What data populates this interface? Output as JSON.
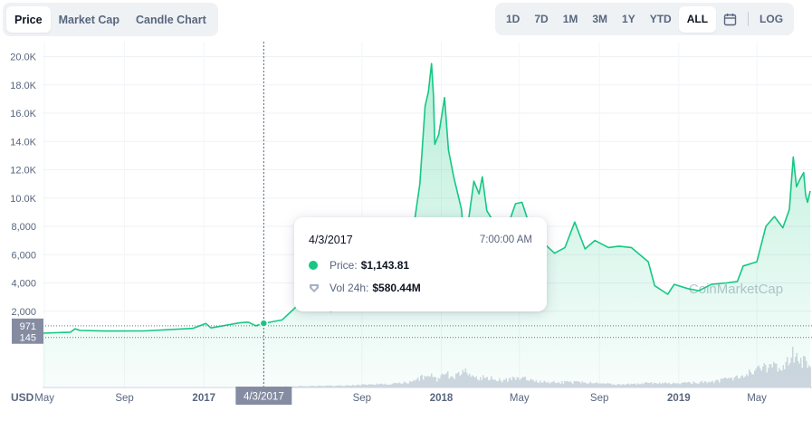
{
  "tabs": [
    {
      "label": "Price",
      "active": true
    },
    {
      "label": "Market Cap",
      "active": false
    },
    {
      "label": "Candle Chart",
      "active": false
    }
  ],
  "ranges": [
    {
      "label": "1D",
      "active": false
    },
    {
      "label": "7D",
      "active": false
    },
    {
      "label": "1M",
      "active": false
    },
    {
      "label": "3M",
      "active": false
    },
    {
      "label": "1Y",
      "active": false
    },
    {
      "label": "YTD",
      "active": false
    },
    {
      "label": "ALL",
      "active": true
    }
  ],
  "log_label": "LOG",
  "currency": "USD",
  "tooltip": {
    "date": "4/3/2017",
    "time": "7:00:00 AM",
    "price_label": "Price:",
    "price_value": "$1,143.81",
    "volume_label": "Vol 24h:",
    "volume_value": "$580.44M"
  },
  "crosshair_label": "4/3/2017",
  "watermark": "CoinMarketCap",
  "colors": {
    "accent": "#16c784",
    "text": "#58667e",
    "dark": "#0d1421",
    "axis_badge": "#858ca2"
  },
  "chart_data": {
    "type": "area",
    "y_ticks": [
      "20.0K",
      "18.0K",
      "16.0K",
      "14.0K",
      "12.0K",
      "10.0K",
      "8,000",
      "6,000",
      "4,000",
      "2,000"
    ],
    "y_markers": [
      "971",
      "145"
    ],
    "x_ticks": [
      "May",
      "Sep",
      "2017",
      "4/3/2017",
      "Sep",
      "2018",
      "May",
      "Sep",
      "2019",
      "May"
    ],
    "ylim": [
      0,
      20600
    ],
    "series": [
      {
        "values": [
          [
            "2016-04-28",
            450
          ],
          [
            "2016-06-10",
            520
          ],
          [
            "2016-06-17",
            760
          ],
          [
            "2016-06-25",
            640
          ],
          [
            "2016-08-01",
            600
          ],
          [
            "2016-10-01",
            610
          ],
          [
            "2016-12-15",
            790
          ],
          [
            "2017-01-04",
            1130
          ],
          [
            "2017-01-12",
            820
          ],
          [
            "2017-02-25",
            1180
          ],
          [
            "2017-03-10",
            1230
          ],
          [
            "2017-03-22",
            970
          ],
          [
            "2017-04-03",
            1144
          ],
          [
            "2017-05-01",
            1380
          ],
          [
            "2017-05-25",
            2400
          ],
          [
            "2017-06-12",
            2900
          ],
          [
            "2017-07-15",
            2000
          ],
          [
            "2017-08-10",
            3400
          ],
          [
            "2017-09-01",
            4700
          ],
          [
            "2017-09-15",
            3300
          ],
          [
            "2017-10-01",
            4300
          ],
          [
            "2017-10-20",
            6000
          ],
          [
            "2017-11-08",
            7400
          ],
          [
            "2017-11-20",
            8100
          ],
          [
            "2017-11-29",
            11000
          ],
          [
            "2017-12-07",
            16500
          ],
          [
            "2017-12-12",
            17500
          ],
          [
            "2017-12-17",
            19500
          ],
          [
            "2017-12-20",
            17200
          ],
          [
            "2017-12-22",
            13800
          ],
          [
            "2017-12-28",
            14500
          ],
          [
            "2018-01-06",
            17100
          ],
          [
            "2018-01-12",
            13400
          ],
          [
            "2018-01-20",
            11500
          ],
          [
            "2018-02-01",
            9200
          ],
          [
            "2018-02-05",
            6900
          ],
          [
            "2018-02-12",
            8500
          ],
          [
            "2018-02-20",
            11200
          ],
          [
            "2018-02-28",
            10300
          ],
          [
            "2018-03-05",
            11500
          ],
          [
            "2018-03-12",
            9100
          ],
          [
            "2018-03-20",
            8500
          ],
          [
            "2018-04-01",
            6900
          ],
          [
            "2018-04-12",
            7900
          ],
          [
            "2018-04-25",
            9600
          ],
          [
            "2018-05-05",
            9700
          ],
          [
            "2018-05-15",
            8300
          ],
          [
            "2018-05-25",
            7400
          ],
          [
            "2018-06-10",
            6700
          ],
          [
            "2018-06-24",
            6100
          ],
          [
            "2018-07-10",
            6500
          ],
          [
            "2018-07-25",
            8300
          ],
          [
            "2018-08-10",
            6400
          ],
          [
            "2018-08-25",
            7000
          ],
          [
            "2018-09-15",
            6500
          ],
          [
            "2018-10-01",
            6600
          ],
          [
            "2018-10-20",
            6500
          ],
          [
            "2018-11-15",
            5500
          ],
          [
            "2018-11-25",
            3800
          ],
          [
            "2018-12-15",
            3200
          ],
          [
            "2018-12-25",
            3900
          ],
          [
            "2019-01-15",
            3600
          ],
          [
            "2019-02-01",
            3450
          ],
          [
            "2019-02-20",
            3900
          ],
          [
            "2019-03-15",
            4000
          ],
          [
            "2019-04-01",
            4100
          ],
          [
            "2019-04-10",
            5200
          ],
          [
            "2019-05-01",
            5500
          ],
          [
            "2019-05-15",
            8000
          ],
          [
            "2019-05-28",
            8700
          ],
          [
            "2019-06-10",
            7900
          ],
          [
            "2019-06-20",
            9200
          ],
          [
            "2019-06-26",
            12900
          ],
          [
            "2019-07-01",
            10800
          ],
          [
            "2019-07-06",
            11300
          ],
          [
            "2019-07-12",
            11800
          ],
          [
            "2019-07-15",
            10200
          ],
          [
            "2019-07-18",
            9700
          ],
          [
            "2019-07-22",
            10500
          ]
        ]
      }
    ],
    "volume": {
      "values": [
        [
          "2016-04-28",
          0.0
        ],
        [
          "2017-03-01",
          0.01
        ],
        [
          "2017-05-15",
          0.03
        ],
        [
          "2017-08-01",
          0.05
        ],
        [
          "2017-09-15",
          0.08
        ],
        [
          "2017-10-20",
          0.1
        ],
        [
          "2017-11-20",
          0.16
        ],
        [
          "2017-12-05",
          0.3
        ],
        [
          "2017-12-15",
          0.36
        ],
        [
          "2017-12-25",
          0.2
        ],
        [
          "2018-01-05",
          0.42
        ],
        [
          "2018-01-15",
          0.25
        ],
        [
          "2018-01-25",
          0.33
        ],
        [
          "2018-02-05",
          0.4
        ],
        [
          "2018-02-20",
          0.22
        ],
        [
          "2018-03-10",
          0.27
        ],
        [
          "2018-04-01",
          0.18
        ],
        [
          "2018-05-01",
          0.24
        ],
        [
          "2018-06-01",
          0.15
        ],
        [
          "2018-07-01",
          0.13
        ],
        [
          "2018-08-01",
          0.14
        ],
        [
          "2018-09-01",
          0.1
        ],
        [
          "2018-10-01",
          0.07
        ],
        [
          "2018-11-20",
          0.12
        ],
        [
          "2018-12-20",
          0.1
        ],
        [
          "2019-01-20",
          0.12
        ],
        [
          "2019-03-01",
          0.16
        ],
        [
          "2019-04-05",
          0.3
        ],
        [
          "2019-05-10",
          0.5
        ],
        [
          "2019-05-25",
          0.55
        ],
        [
          "2019-06-10",
          0.45
        ],
        [
          "2019-06-26",
          0.9
        ],
        [
          "2019-07-05",
          0.6
        ],
        [
          "2019-07-15",
          0.75
        ],
        [
          "2019-07-22",
          0.5
        ]
      ]
    },
    "grid": true,
    "hover_date": "2017-04-03"
  }
}
